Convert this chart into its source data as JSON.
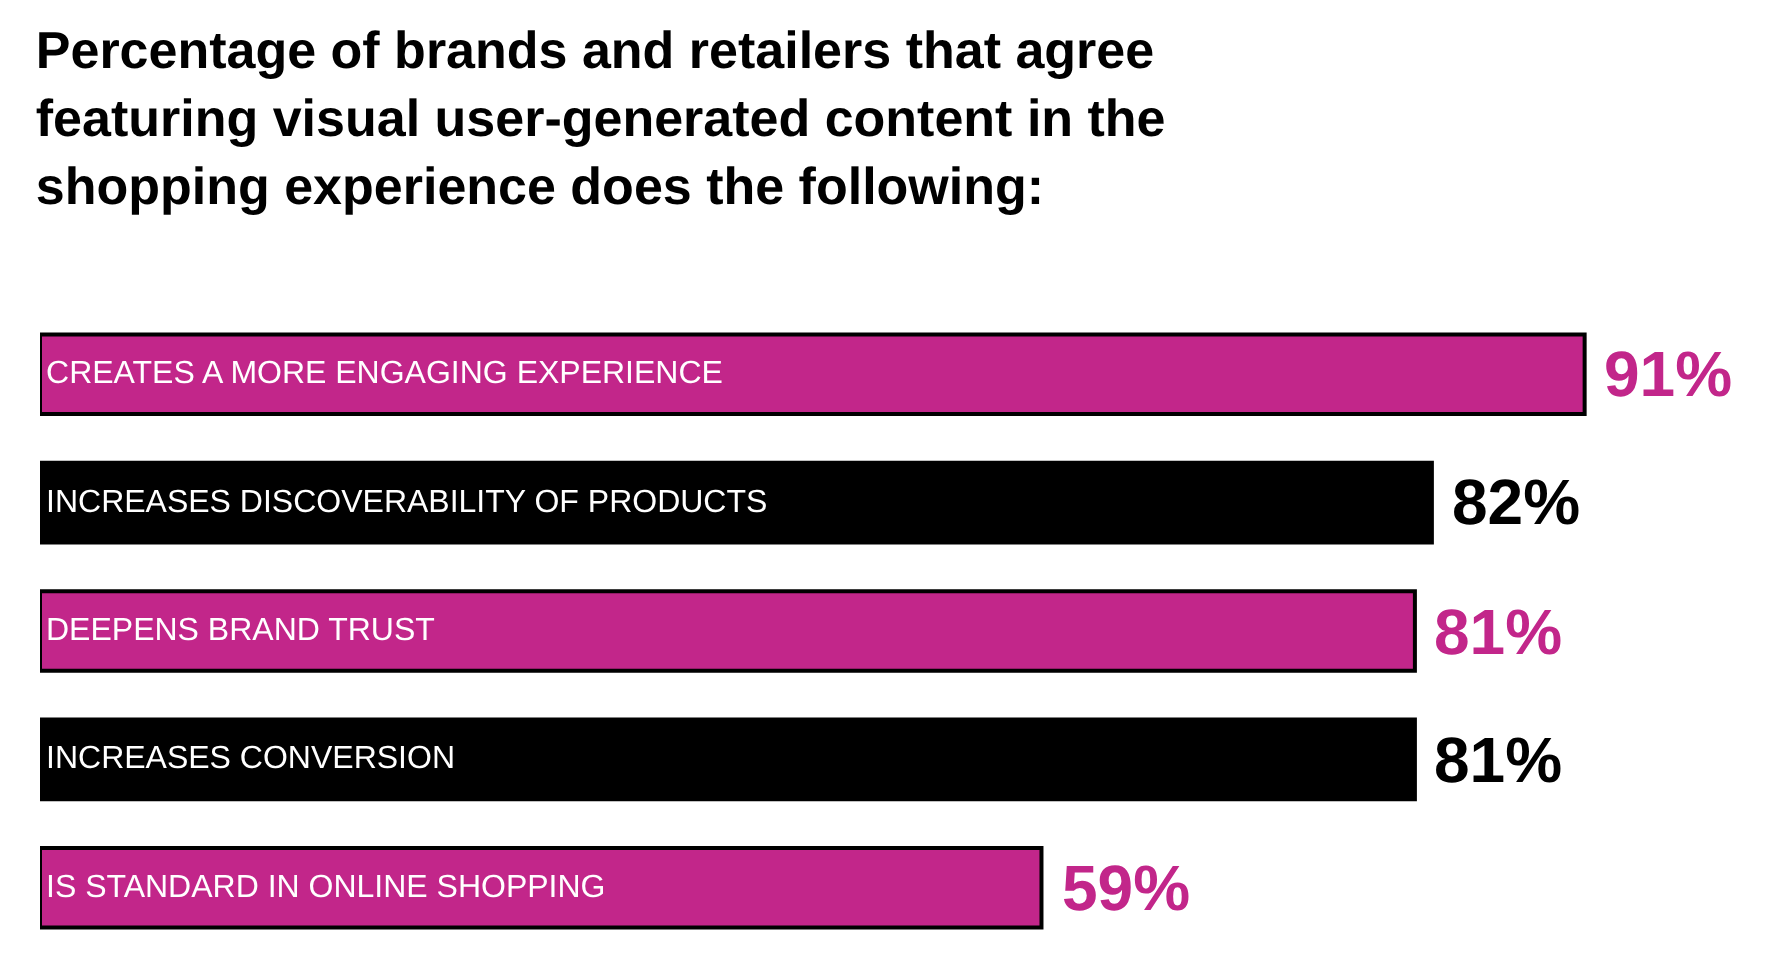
{
  "chart_data": {
    "type": "bar",
    "orientation": "horizontal",
    "title": "Percentage of brands and retailers that agree featuring visual user-generated content in the shopping experience does the following:",
    "categories": [
      "CREATES A MORE ENGAGING EXPERIENCE",
      "INCREASES DISCOVERABILITY OF PRODUCTS",
      "DEEPENS BRAND TRUST",
      "INCREASES CONVERSION",
      "IS STANDARD IN ONLINE SHOPPING"
    ],
    "values": [
      91,
      82,
      81,
      81,
      59
    ],
    "colors": [
      "#c2268a",
      "#000000",
      "#c2268a",
      "#000000",
      "#c2268a"
    ],
    "value_labels": [
      "91%",
      "82%",
      "81%",
      "81%",
      "59%"
    ]
  }
}
